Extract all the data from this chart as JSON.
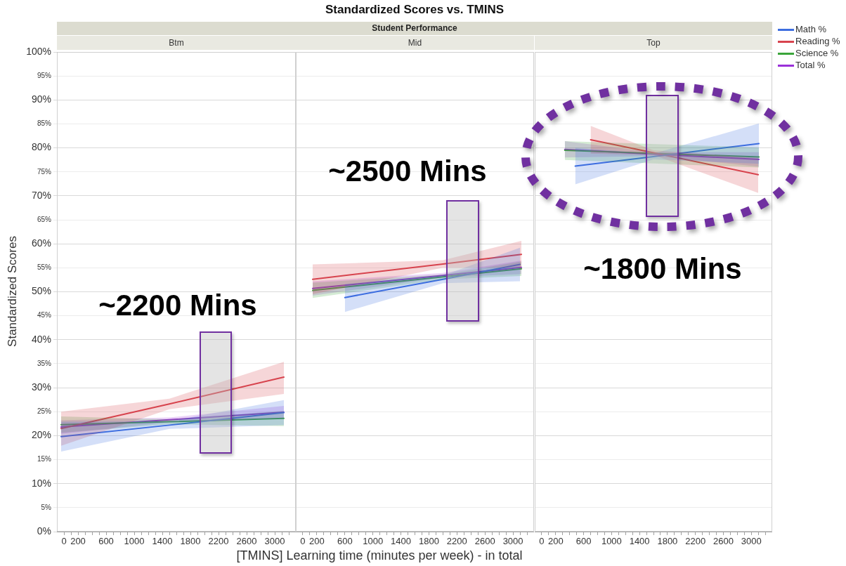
{
  "chart_data": [
    {
      "type": "line",
      "xlabel": "[TMINS] Learning time (minutes per week) - in total",
      "ylabel": "Standardized Scores",
      "annotations": [
        "Btm",
        "~2200 Mins"
      ],
      "xlim": [
        -100,
        3300
      ],
      "xticks": [
        0,
        {
          "value": 100,
          "label": null
        },
        200,
        {
          "value": 300,
          "label": null
        },
        {
          "value": 400,
          "label": null
        },
        {
          "value": 500,
          "label": null
        },
        600,
        {
          "value": 700,
          "label": null
        },
        {
          "value": 800,
          "label": null
        },
        {
          "value": 900,
          "label": null
        },
        1000,
        {
          "value": 1100,
          "label": null
        },
        {
          "value": 1200,
          "label": null
        },
        {
          "value": 1300,
          "label": null
        },
        1400,
        {
          "value": 1500,
          "label": null
        },
        {
          "value": 1600,
          "label": null
        },
        {
          "value": 1700,
          "label": null
        },
        1800,
        {
          "value": 1900,
          "label": null
        },
        {
          "value": 2000,
          "label": null
        },
        {
          "value": 2100,
          "label": null
        },
        2200,
        {
          "value": 2300,
          "label": null
        },
        {
          "value": 2400,
          "label": null
        },
        {
          "value": 2500,
          "label": null
        },
        2600,
        {
          "value": 2700,
          "label": null
        },
        {
          "value": 2800,
          "label": null
        },
        {
          "value": 2900,
          "label": null
        },
        3000,
        {
          "value": 3100,
          "label": null
        },
        {
          "value": 3200,
          "label": null
        }
      ],
      "ylim": [
        0,
        100
      ],
      "yticks": [
        {
          "value": 0,
          "label": "0%"
        },
        {
          "value": 5,
          "label": "5%"
        },
        {
          "value": 10,
          "label": "10%"
        },
        {
          "value": 15,
          "label": "15%"
        },
        {
          "value": 20,
          "label": "20%"
        },
        {
          "value": 25,
          "label": "25%"
        },
        {
          "value": 30,
          "label": "30%"
        },
        {
          "value": 35,
          "label": "35%"
        },
        {
          "value": 40,
          "label": "40%"
        },
        {
          "value": 45,
          "label": "45%"
        },
        {
          "value": 50,
          "label": "50%"
        },
        {
          "value": 55,
          "label": "55%"
        },
        {
          "value": 60,
          "label": "60%"
        },
        {
          "value": 65,
          "label": "65%"
        },
        {
          "value": 70,
          "label": "70%"
        },
        {
          "value": 75,
          "label": "75%"
        },
        {
          "value": 80,
          "label": "80%"
        },
        {
          "value": 85,
          "label": "85%"
        },
        {
          "value": 90,
          "label": "90%"
        },
        {
          "value": 95,
          "label": "95%"
        },
        {
          "value": 100,
          "label": "100%"
        }
      ],
      "grid": "y",
      "series": [
        {
          "color": "#3d6ee0",
          "x": [
            -40,
            1500,
            3130
          ],
          "values": [
            19.8,
            22.2,
            24.8
          ],
          "lower": [
            16.7,
            21.4,
            22.2
          ],
          "upper": [
            22.9,
            23.0,
            27.4
          ]
        },
        {
          "color": "#d8434e",
          "x": [
            -40,
            1500,
            3130
          ],
          "values": [
            21.5,
            26.6,
            32.2
          ],
          "lower": [
            17.9,
            25.5,
            28.7
          ],
          "upper": [
            25.0,
            27.7,
            35.4
          ]
        },
        {
          "color": "#3aa53a",
          "x": [
            -40,
            1500,
            3130
          ],
          "values": [
            22.3,
            22.9,
            23.6
          ],
          "lower": [
            20.6,
            22.4,
            22.0
          ],
          "upper": [
            24.0,
            23.4,
            25.2
          ]
        },
        {
          "color": "#9a30d8",
          "x": [
            -40,
            1500,
            3130
          ],
          "values": [
            21.8,
            23.3,
            24.9
          ],
          "lower": [
            20.4,
            22.8,
            23.6
          ],
          "upper": [
            23.2,
            23.8,
            26.2
          ]
        }
      ]
    },
    {
      "type": "line",
      "title": "Standardized Scores vs. TMINS",
      "subtitle": "Student Performance",
      "annotations": [
        "Mid",
        "~2500 Mins"
      ],
      "tick_labels": "x",
      "xlim": [
        -100,
        3300
      ],
      "xticks": [
        0,
        {
          "value": 100,
          "label": null
        },
        200,
        {
          "value": 300,
          "label": null
        },
        {
          "value": 400,
          "label": null
        },
        {
          "value": 500,
          "label": null
        },
        600,
        {
          "value": 700,
          "label": null
        },
        {
          "value": 800,
          "label": null
        },
        {
          "value": 900,
          "label": null
        },
        1000,
        {
          "value": 1100,
          "label": null
        },
        {
          "value": 1200,
          "label": null
        },
        {
          "value": 1300,
          "label": null
        },
        1400,
        {
          "value": 1500,
          "label": null
        },
        {
          "value": 1600,
          "label": null
        },
        {
          "value": 1700,
          "label": null
        },
        1800,
        {
          "value": 1900,
          "label": null
        },
        {
          "value": 2000,
          "label": null
        },
        {
          "value": 2100,
          "label": null
        },
        2200,
        {
          "value": 2300,
          "label": null
        },
        {
          "value": 2400,
          "label": null
        },
        {
          "value": 2500,
          "label": null
        },
        2600,
        {
          "value": 2700,
          "label": null
        },
        {
          "value": 2800,
          "label": null
        },
        {
          "value": 2900,
          "label": null
        },
        3000,
        {
          "value": 3100,
          "label": null
        },
        {
          "value": 3200,
          "label": null
        }
      ],
      "ylim": [
        0,
        100
      ],
      "yticks": [
        0,
        5,
        10,
        15,
        20,
        25,
        30,
        35,
        40,
        45,
        50,
        55,
        60,
        65,
        70,
        75,
        80,
        85,
        90,
        95,
        100
      ],
      "grid": "y",
      "series": [
        {
          "color": "#3d6ee0",
          "x": [
            600,
            2000,
            3100
          ],
          "values": [
            48.8,
            52.6,
            55.7
          ],
          "lower": [
            45.8,
            51.8,
            52.2
          ],
          "upper": [
            51.6,
            53.4,
            59.2
          ]
        },
        {
          "color": "#d8434e",
          "x": [
            140,
            2000,
            3120
          ],
          "values": [
            52.6,
            55.8,
            57.8
          ],
          "lower": [
            49.5,
            55.0,
            55.0
          ],
          "upper": [
            55.7,
            56.6,
            60.6
          ]
        },
        {
          "color": "#3aa53a",
          "x": [
            140,
            2000,
            3120
          ],
          "values": [
            50.3,
            53.1,
            54.8
          ],
          "lower": [
            48.7,
            52.6,
            53.3
          ],
          "upper": [
            51.9,
            53.6,
            56.3
          ]
        },
        {
          "color": "#9a30d8",
          "x": [
            140,
            2000,
            3120
          ],
          "values": [
            50.7,
            53.4,
            55.1
          ],
          "lower": [
            49.2,
            53.0,
            53.7
          ],
          "upper": [
            52.2,
            53.9,
            56.5
          ]
        }
      ]
    },
    {
      "type": "line",
      "annotations": [
        "Top",
        "~1800 Mins"
      ],
      "tick_labels": "x",
      "legend": "top right",
      "xlim": [
        -100,
        3300
      ],
      "xticks": [
        0,
        {
          "value": 100,
          "label": null
        },
        200,
        {
          "value": 300,
          "label": null
        },
        {
          "value": 400,
          "label": null
        },
        {
          "value": 500,
          "label": null
        },
        600,
        {
          "value": 700,
          "label": null
        },
        {
          "value": 800,
          "label": null
        },
        {
          "value": 900,
          "label": null
        },
        1000,
        {
          "value": 1100,
          "label": null
        },
        {
          "value": 1200,
          "label": null
        },
        {
          "value": 1300,
          "label": null
        },
        1400,
        {
          "value": 1500,
          "label": null
        },
        {
          "value": 1600,
          "label": null
        },
        {
          "value": 1700,
          "label": null
        },
        1800,
        {
          "value": 1900,
          "label": null
        },
        {
          "value": 2000,
          "label": null
        },
        {
          "value": 2100,
          "label": null
        },
        2200,
        {
          "value": 2300,
          "label": null
        },
        {
          "value": 2400,
          "label": null
        },
        {
          "value": 2500,
          "label": null
        },
        2600,
        {
          "value": 2700,
          "label": null
        },
        {
          "value": 2800,
          "label": null
        },
        {
          "value": 2900,
          "label": null
        },
        3000,
        {
          "value": 3100,
          "label": null
        },
        {
          "value": 3200,
          "label": null
        }
      ],
      "ylim": [
        0,
        100
      ],
      "yticks": [
        0,
        5,
        10,
        15,
        20,
        25,
        30,
        35,
        40,
        45,
        50,
        55,
        60,
        65,
        70,
        75,
        80,
        85,
        90,
        95,
        100
      ],
      "grid": "y",
      "series": [
        {
          "name": "Math %",
          "color": "#3d6ee0",
          "x": [
            480,
            1600,
            3110
          ],
          "values": [
            76.2,
            78.2,
            80.9
          ],
          "lower": [
            72.4,
            77.6,
            76.7
          ],
          "upper": [
            80.0,
            78.8,
            85.1
          ]
        },
        {
          "name": "Reading %",
          "color": "#d8434e",
          "x": [
            700,
            1600,
            3100
          ],
          "values": [
            81.7,
            79.0,
            74.4
          ],
          "lower": [
            78.8,
            78.5,
            70.6
          ],
          "upper": [
            84.6,
            79.5,
            77.9
          ]
        },
        {
          "name": "Science %",
          "color": "#3aa53a",
          "x": [
            330,
            3110
          ],
          "values": [
            79.5,
            78.1
          ],
          "lower": [
            77.5,
            75.9
          ],
          "upper": [
            81.4,
            80.1
          ]
        },
        {
          "name": "Total %",
          "color": "#9a30d8",
          "x": [
            330,
            1600,
            3110
          ],
          "values": [
            79.7,
            78.7,
            77.6
          ],
          "lower": [
            78.0,
            78.3,
            76.1
          ],
          "upper": [
            81.4,
            79.1,
            79.1
          ]
        }
      ]
    }
  ]
}
